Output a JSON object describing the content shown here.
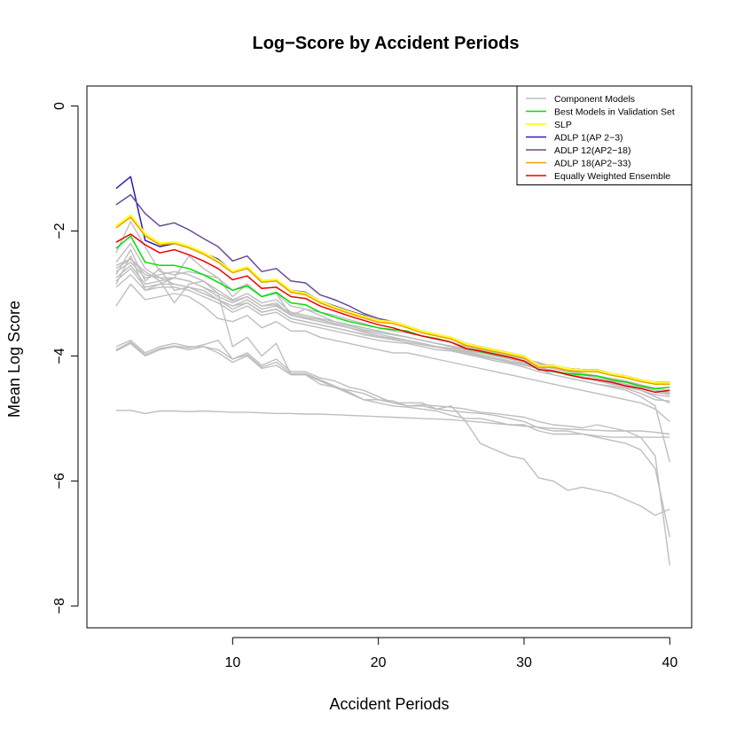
{
  "chart_data": {
    "type": "line",
    "title": "Log−Score by Accident Periods",
    "xlabel": "Accident Periods",
    "ylabel": "Mean Log Score",
    "xlim": [
      0,
      41.5
    ],
    "ylim": [
      -8.35,
      0.32
    ],
    "xticks": [
      10,
      20,
      30,
      40
    ],
    "xtick_labels": [
      "10",
      "20",
      "30",
      "40"
    ],
    "yticks": [
      0,
      -2,
      -4,
      -6,
      -8
    ],
    "ytick_labels": [
      "0",
      "−2",
      "−4",
      "−6",
      "−8"
    ],
    "grid": false,
    "legend_position": "top-right",
    "x": [
      2,
      3,
      4,
      5,
      6,
      7,
      8,
      9,
      10,
      11,
      12,
      13,
      14,
      15,
      16,
      17,
      18,
      19,
      20,
      21,
      22,
      23,
      24,
      25,
      26,
      27,
      28,
      29,
      30,
      31,
      32,
      33,
      34,
      35,
      36,
      37,
      38,
      39,
      40
    ],
    "legend": [
      {
        "label": "Component Models",
        "color": "#bebebe"
      },
      {
        "label": "Best Models in Validation Set",
        "color": "#00e000"
      },
      {
        "label": "SLP",
        "color": "#ffff33"
      },
      {
        "label": "ADLP 1(AP 2−3)",
        "color": "#2b1bbf"
      },
      {
        "label": "ADLP 12(AP2−18)",
        "color": "#6a4c93"
      },
      {
        "label": "ADLP 18(AP2−33)",
        "color": "#f0a000"
      },
      {
        "label": "Equally Weighted Ensemble",
        "color": "#ee0000"
      }
    ],
    "component_series": [
      {
        "values": [
          -4.87,
          -4.87,
          -4.92,
          -4.88,
          -4.88,
          -4.89,
          -4.88,
          -4.89,
          -4.9,
          -4.9,
          -4.91,
          -4.92,
          -4.92,
          -4.93,
          -4.93,
          -4.94,
          -4.95,
          -4.96,
          -4.97,
          -4.98,
          -4.99,
          -5.0,
          -5.01,
          -5.02,
          -5.04,
          -5.06,
          -5.08,
          -5.1,
          -5.12,
          -5.14,
          -5.16,
          -5.17,
          -5.18,
          -5.19,
          -5.2,
          -5.2,
          -5.2,
          -5.22,
          -5.25
        ]
      },
      {
        "values": [
          -3.85,
          -3.75,
          -3.95,
          -3.85,
          -3.8,
          -3.85,
          -3.85,
          -3.9,
          -4.05,
          -3.95,
          -4.15,
          -4.05,
          -4.25,
          -4.25,
          -4.35,
          -4.4,
          -4.5,
          -4.55,
          -4.65,
          -4.75,
          -4.8,
          -4.8,
          -4.85,
          -4.88,
          -4.9,
          -4.92,
          -4.95,
          -5.0,
          -5.05,
          -5.15,
          -5.2,
          -5.2,
          -5.25,
          -5.28,
          -5.3,
          -5.3,
          -5.3,
          -5.3,
          -5.3
        ]
      },
      {
        "values": [
          -3.92,
          -3.8,
          -4.0,
          -3.9,
          -3.85,
          -3.9,
          -3.85,
          -3.95,
          -4.1,
          -4.0,
          -4.2,
          -4.15,
          -4.3,
          -4.3,
          -4.4,
          -4.5,
          -4.6,
          -4.7,
          -4.75,
          -4.8,
          -4.82,
          -4.85,
          -4.88,
          -4.95,
          -5.0,
          -5.0,
          -5.05,
          -5.1,
          -5.1,
          -5.2,
          -5.25,
          -5.25,
          -5.25,
          -5.3,
          -5.35,
          -5.4,
          -5.5,
          -5.8,
          -6.9
        ]
      },
      {
        "values": [
          -3.9,
          -3.78,
          -3.98,
          -3.88,
          -3.84,
          -3.87,
          -3.82,
          -3.75,
          -4.05,
          -3.98,
          -4.18,
          -4.1,
          -4.28,
          -4.28,
          -4.38,
          -4.48,
          -4.58,
          -4.7,
          -4.7,
          -4.72,
          -4.8,
          -4.78,
          -4.8,
          -4.82,
          -4.85,
          -4.9,
          -4.92,
          -4.95,
          -4.98,
          -5.05,
          -5.1,
          -5.12,
          -5.15,
          -5.1,
          -5.15,
          -5.2,
          -5.3,
          -5.6,
          -7.35
        ]
      },
      {
        "values": [
          -2.55,
          -2.45,
          -2.65,
          -2.8,
          -3.15,
          -2.85,
          -2.8,
          -3.0,
          -3.85,
          -3.7,
          -4.0,
          -3.8,
          -4.3,
          -4.3,
          -4.45,
          -4.5,
          -4.55,
          -4.6,
          -4.7,
          -4.75,
          -4.75,
          -4.75,
          -4.85,
          -4.8,
          -5.05,
          -5.4,
          -5.5,
          -5.6,
          -5.65,
          -5.95,
          -6.0,
          -6.15,
          -6.1,
          -6.15,
          -6.2,
          -6.3,
          -6.4,
          -6.55,
          -6.45
        ]
      },
      {
        "values": [
          -3.2,
          -2.85,
          -3.1,
          -3.05,
          -3.0,
          -3.05,
          -3.2,
          -3.4,
          -3.45,
          -3.35,
          -3.55,
          -3.45,
          -3.6,
          -3.6,
          -3.7,
          -3.75,
          -3.8,
          -3.85,
          -3.9,
          -3.95,
          -3.95,
          -4.0,
          -4.05,
          -4.1,
          -4.15,
          -4.2,
          -4.25,
          -4.3,
          -4.35,
          -4.4,
          -4.45,
          -4.5,
          -4.55,
          -4.6,
          -4.65,
          -4.7,
          -4.75,
          -4.85,
          -5.05
        ]
      },
      {
        "values": [
          -2.85,
          -2.4,
          -2.95,
          -2.85,
          -2.75,
          -2.4,
          -2.6,
          -2.75,
          -3.05,
          -2.85,
          -3.05,
          -3.0,
          -3.35,
          -3.25,
          -3.35,
          -3.45,
          -3.5,
          -3.55,
          -3.6,
          -3.65,
          -3.7,
          -3.75,
          -3.8,
          -3.85,
          -3.95,
          -4.0,
          -4.05,
          -4.1,
          -4.15,
          -4.2,
          -4.3,
          -4.35,
          -4.4,
          -4.45,
          -4.5,
          -4.55,
          -4.65,
          -4.8,
          -5.7
        ]
      },
      {
        "values": [
          -2.75,
          -2.55,
          -2.85,
          -2.8,
          -2.75,
          -2.8,
          -2.9,
          -3.05,
          -3.15,
          -3.05,
          -3.2,
          -3.15,
          -3.35,
          -3.4,
          -3.45,
          -3.5,
          -3.55,
          -3.6,
          -3.65,
          -3.7,
          -3.75,
          -3.8,
          -3.85,
          -3.9,
          -3.95,
          -4.0,
          -4.05,
          -4.1,
          -4.15,
          -4.2,
          -4.25,
          -4.3,
          -4.35,
          -4.4,
          -4.45,
          -4.5,
          -4.55,
          -4.65,
          -4.75
        ]
      },
      {
        "values": [
          -2.65,
          -2.5,
          -2.75,
          -2.7,
          -2.65,
          -2.7,
          -2.8,
          -2.95,
          -3.1,
          -3.0,
          -3.15,
          -3.1,
          -3.3,
          -3.35,
          -3.4,
          -3.45,
          -3.5,
          -3.55,
          -3.6,
          -3.65,
          -3.7,
          -3.75,
          -3.8,
          -3.85,
          -3.9,
          -3.95,
          -4.0,
          -4.05,
          -4.1,
          -4.15,
          -4.2,
          -4.25,
          -4.3,
          -4.35,
          -4.4,
          -4.45,
          -4.5,
          -4.55,
          -4.6
        ]
      },
      {
        "values": [
          -2.5,
          -2.2,
          -2.6,
          -2.75,
          -2.85,
          -2.9,
          -3.0,
          -3.1,
          -3.25,
          -3.15,
          -3.3,
          -3.25,
          -3.4,
          -3.45,
          -3.5,
          -3.55,
          -3.6,
          -3.65,
          -3.7,
          -3.72,
          -3.75,
          -3.8,
          -3.85,
          -3.88,
          -3.92,
          -3.95,
          -4.0,
          -4.05,
          -4.1,
          -4.15,
          -4.2,
          -4.25,
          -4.28,
          -4.32,
          -4.38,
          -4.42,
          -4.48,
          -4.55,
          -4.58
        ]
      },
      {
        "values": [
          -2.9,
          -2.7,
          -2.95,
          -2.9,
          -2.9,
          -2.95,
          -3.05,
          -3.15,
          -3.3,
          -3.2,
          -3.35,
          -3.3,
          -3.45,
          -3.5,
          -3.55,
          -3.6,
          -3.65,
          -3.7,
          -3.75,
          -3.78,
          -3.8,
          -3.85,
          -3.9,
          -3.92,
          -3.97,
          -4.02,
          -4.08,
          -4.12,
          -4.18,
          -4.25,
          -4.3,
          -4.35,
          -4.4,
          -4.45,
          -4.48,
          -4.52,
          -4.6,
          -4.7,
          -4.72
        ]
      },
      {
        "values": [
          -2.35,
          -1.85,
          -2.25,
          -2.65,
          -2.7,
          -2.65,
          -2.7,
          -2.75,
          -2.95,
          -2.85,
          -3.05,
          -3.0,
          -3.2,
          -3.25,
          -3.3,
          -3.35,
          -3.42,
          -3.48,
          -3.55,
          -3.6,
          -3.63,
          -3.68,
          -3.73,
          -3.78,
          -3.85,
          -3.9,
          -3.95,
          -4.0,
          -4.05,
          -4.1,
          -4.18,
          -4.22,
          -4.28,
          -4.32,
          -4.38,
          -4.42,
          -4.48,
          -4.55,
          -4.6
        ]
      },
      {
        "values": [
          -2.7,
          -2.3,
          -2.8,
          -2.6,
          -2.95,
          -2.9,
          -2.95,
          -3.1,
          -3.2,
          -3.1,
          -3.25,
          -3.2,
          -3.35,
          -3.4,
          -3.45,
          -3.5,
          -3.55,
          -3.62,
          -3.68,
          -3.72,
          -3.75,
          -3.8,
          -3.85,
          -3.88,
          -3.93,
          -3.98,
          -4.03,
          -4.08,
          -4.12,
          -4.18,
          -4.23,
          -4.28,
          -4.33,
          -4.38,
          -4.42,
          -4.47,
          -4.52,
          -4.58,
          -4.62
        ]
      },
      {
        "values": [
          -2.8,
          -2.6,
          -2.9,
          -2.85,
          -2.85,
          -2.9,
          -3.0,
          -3.1,
          -3.2,
          -3.15,
          -3.3,
          -3.25,
          -3.4,
          -3.45,
          -3.5,
          -3.55,
          -3.6,
          -3.66,
          -3.7,
          -3.74,
          -3.78,
          -3.82,
          -3.86,
          -3.9,
          -3.95,
          -4.0,
          -4.05,
          -4.1,
          -4.14,
          -4.2,
          -4.25,
          -4.3,
          -4.35,
          -4.4,
          -4.44,
          -4.48,
          -4.55,
          -4.62,
          -4.65
        ]
      },
      {
        "values": [
          -2.6,
          -2.45,
          -2.7,
          -2.75,
          -2.75,
          -2.8,
          -2.9,
          -3.0,
          -3.12,
          -3.05,
          -3.2,
          -3.18,
          -3.32,
          -3.38,
          -3.42,
          -3.48,
          -3.52,
          -3.58,
          -3.62,
          -3.66,
          -3.7,
          -3.75,
          -3.8,
          -3.84,
          -3.88,
          -3.94,
          -3.98,
          -4.03,
          -4.08,
          -4.12,
          -4.18,
          -4.23,
          -4.28,
          -4.32,
          -4.36,
          -4.4,
          -4.46,
          -4.52,
          -4.55
        ]
      }
    ],
    "series": [
      {
        "name": "Best Models in Validation Set",
        "color": "#00e000",
        "values": [
          -2.28,
          -2.08,
          -2.5,
          -2.55,
          -2.55,
          -2.6,
          -2.7,
          -2.82,
          -2.95,
          -2.88,
          -3.05,
          -2.98,
          -3.15,
          -3.18,
          -3.3,
          -3.38,
          -3.45,
          -3.5,
          -3.55,
          -3.58,
          -3.6,
          -3.68,
          -3.72,
          -3.78,
          -3.88,
          -3.93,
          -3.98,
          -4.02,
          -4.08,
          -4.22,
          -4.25,
          -4.28,
          -4.3,
          -4.32,
          -4.38,
          -4.42,
          -4.48,
          -4.52,
          -4.5
        ]
      },
      {
        "name": "ADLP 1(AP 2−3)",
        "color": "#2b1bbf",
        "values": [
          -1.32,
          -1.13,
          -2.15,
          -2.25,
          -2.2,
          -2.25,
          -2.35,
          -2.45,
          -2.65,
          -2.58,
          -2.8,
          -2.78,
          -2.95,
          -2.98,
          -3.12,
          -3.2,
          -3.28,
          -3.35,
          -3.43,
          -3.45,
          -3.52,
          -3.6,
          -3.65,
          -3.7,
          -3.8,
          -3.85,
          -3.9,
          -3.95,
          -4.0,
          -4.15,
          -4.15,
          -4.2,
          -4.22,
          -4.22,
          -4.28,
          -4.32,
          -4.38,
          -4.42,
          -4.42
        ]
      },
      {
        "name": "ADLP 12(AP2−18)",
        "color": "#6a4c93",
        "values": [
          -1.58,
          -1.42,
          -1.72,
          -1.92,
          -1.87,
          -1.98,
          -2.12,
          -2.25,
          -2.48,
          -2.4,
          -2.65,
          -2.6,
          -2.8,
          -2.83,
          -3.02,
          -3.1,
          -3.2,
          -3.32,
          -3.4,
          -3.45,
          -3.52,
          -3.6,
          -3.65,
          -3.7,
          -3.8,
          -3.85,
          -3.9,
          -3.95,
          -4.0,
          -4.15,
          -4.15,
          -4.2,
          -4.22,
          -4.22,
          -4.28,
          -4.32,
          -4.38,
          -4.42,
          -4.42
        ]
      },
      {
        "name": "SLP",
        "color": "#ffff33",
        "values": [
          -1.93,
          -1.75,
          -2.05,
          -2.2,
          -2.18,
          -2.25,
          -2.35,
          -2.48,
          -2.65,
          -2.58,
          -2.8,
          -2.78,
          -2.96,
          -3.0,
          -3.13,
          -3.22,
          -3.3,
          -3.37,
          -3.44,
          -3.46,
          -3.53,
          -3.61,
          -3.66,
          -3.71,
          -3.81,
          -3.86,
          -3.91,
          -3.96,
          -4.01,
          -4.16,
          -4.16,
          -4.21,
          -4.23,
          -4.23,
          -4.29,
          -4.33,
          -4.39,
          -4.43,
          -4.43
        ]
      },
      {
        "name": "ADLP 18(AP2−33)",
        "color": "#f0a000",
        "values": [
          -1.95,
          -1.78,
          -2.08,
          -2.22,
          -2.2,
          -2.27,
          -2.37,
          -2.5,
          -2.67,
          -2.6,
          -2.82,
          -2.8,
          -2.98,
          -3.02,
          -3.15,
          -3.24,
          -3.32,
          -3.39,
          -3.46,
          -3.48,
          -3.55,
          -3.63,
          -3.68,
          -3.73,
          -3.83,
          -3.88,
          -3.93,
          -3.98,
          -4.03,
          -4.18,
          -4.18,
          -4.23,
          -4.25,
          -4.25,
          -4.31,
          -4.35,
          -4.41,
          -4.45,
          -4.45
        ]
      },
      {
        "name": "Equally Weighted Ensemble",
        "color": "#ee0000",
        "values": [
          -2.18,
          -2.05,
          -2.22,
          -2.35,
          -2.3,
          -2.38,
          -2.48,
          -2.6,
          -2.78,
          -2.72,
          -2.92,
          -2.9,
          -3.05,
          -3.08,
          -3.2,
          -3.28,
          -3.36,
          -3.43,
          -3.5,
          -3.55,
          -3.62,
          -3.68,
          -3.73,
          -3.78,
          -3.88,
          -3.92,
          -3.97,
          -4.02,
          -4.08,
          -4.22,
          -4.24,
          -4.3,
          -4.35,
          -4.38,
          -4.42,
          -4.48,
          -4.52,
          -4.58,
          -4.55
        ]
      }
    ]
  }
}
